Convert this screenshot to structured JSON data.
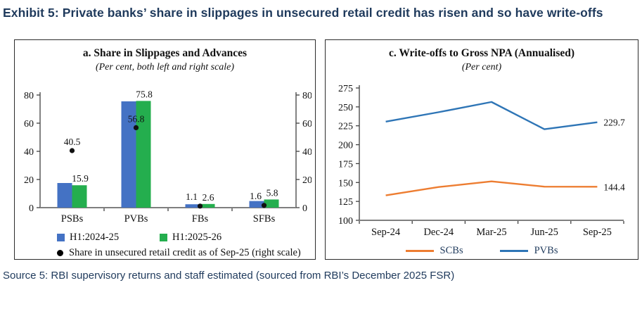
{
  "exhibit": {
    "title": "Exhibit 5: Private banks’ share in slippages in unsecured retail credit has risen and so have write-offs"
  },
  "source": "Source 5: RBI supervisory returns and staff estimated (sourced from RBI’s December 2025 FSR)",
  "colors": {
    "bar_blue": "#4472C4",
    "bar_green": "#24AE4E",
    "line_orange": "#ED7D31",
    "line_blue": "#2E75B6",
    "dot_black": "#111111",
    "heading_navy": "#1F3A5C"
  },
  "chart_data": [
    {
      "type": "bar",
      "title": "a. Share in Slippages and Advances",
      "subtitle": "(Per cent, both left and right scale)",
      "categories": [
        "PSBs",
        "PVBs",
        "FBs",
        "SFBs"
      ],
      "series": [
        {
          "name": "H1:2024-25",
          "color": "#4472C4",
          "values": [
            17.5,
            75.5,
            2.4,
            4.7
          ],
          "labels": [
            "",
            "",
            "",
            ""
          ]
        },
        {
          "name": "H1:2025-26",
          "color": "#24AE4E",
          "values": [
            15.9,
            75.8,
            2.6,
            5.8
          ],
          "labels": [
            "15.9",
            "75.8",
            "2.6",
            "5.8"
          ]
        }
      ],
      "dot_series": {
        "name": "Share in unsecured retail credit as of Sep-25 (right scale)",
        "color": "#111111",
        "values": [
          40.5,
          56.8,
          1.1,
          1.6
        ],
        "labels": [
          "40.5",
          "56.8",
          "1.1",
          "1.6"
        ]
      },
      "ylim": [
        0,
        80
      ],
      "yticks": [
        0,
        20,
        40,
        60,
        80
      ],
      "axes": "left and right",
      "grid": false,
      "legend_position": "bottom-left"
    },
    {
      "type": "line",
      "title": "c. Write-offs to Gross NPA (Annualised)",
      "subtitle": "(Per cent)",
      "x": [
        "Sep-24",
        "Dec-24",
        "Mar-25",
        "Jun-25",
        "Sep-25"
      ],
      "series": [
        {
          "name": "SCBs",
          "color": "#ED7D31",
          "values": [
            133,
            144,
            151.5,
            144.5,
            144.4
          ],
          "end_label": "144.4"
        },
        {
          "name": "PVBs",
          "color": "#2E75B6",
          "values": [
            230.5,
            243,
            256.5,
            220.5,
            229.7
          ],
          "end_label": "229.7"
        }
      ],
      "ylim": [
        100,
        275
      ],
      "yticks": [
        100,
        125,
        150,
        175,
        200,
        225,
        250,
        275
      ],
      "grid": false,
      "legend_position": "bottom-center"
    }
  ]
}
